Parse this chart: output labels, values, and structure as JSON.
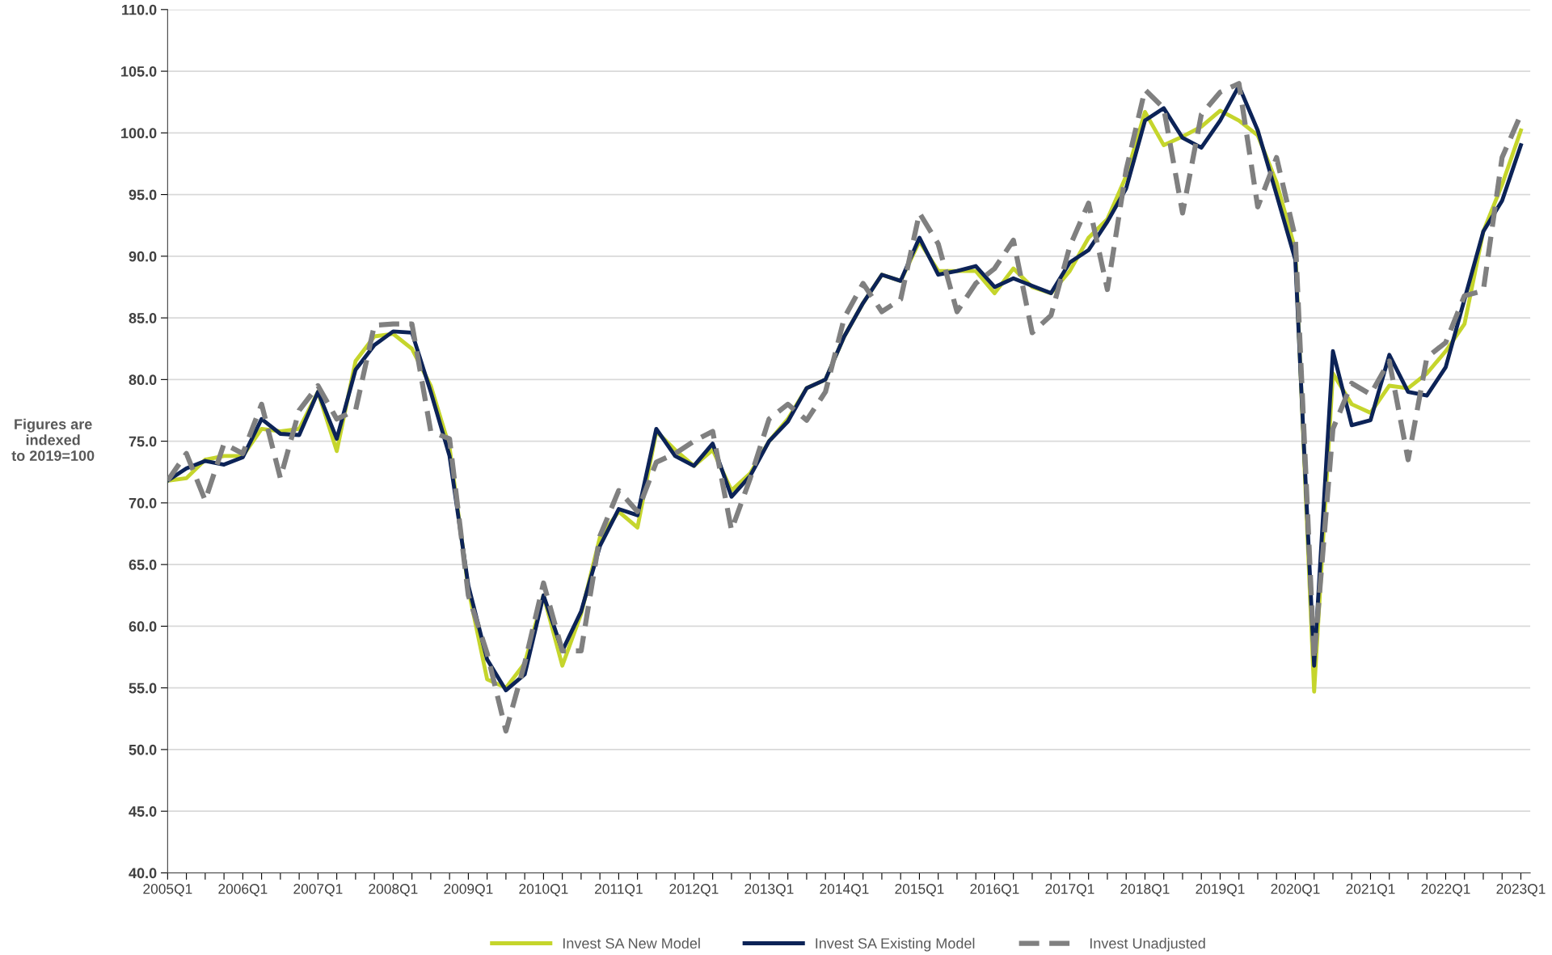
{
  "chart_data": {
    "type": "line",
    "ylabel": "Figures are\nindexed\nto 2019=100",
    "categories": [
      "2005Q1",
      null,
      null,
      null,
      "2006Q1",
      null,
      null,
      null,
      "2007Q1",
      null,
      null,
      null,
      "2008Q1",
      null,
      null,
      null,
      "2009Q1",
      null,
      null,
      null,
      "2010Q1",
      null,
      null,
      null,
      "2011Q1",
      null,
      null,
      null,
      "2012Q1",
      null,
      null,
      null,
      "2013Q1",
      null,
      null,
      null,
      "2014Q1",
      null,
      null,
      null,
      "2015Q1",
      null,
      null,
      null,
      "2016Q1",
      null,
      null,
      null,
      "2017Q1",
      null,
      null,
      null,
      "2018Q1",
      null,
      null,
      null,
      "2019Q1",
      null,
      null,
      null,
      "2020Q1",
      null,
      null,
      null,
      "2021Q1",
      null,
      null,
      null,
      "2022Q1",
      null,
      null,
      null,
      "2023Q1"
    ],
    "series": [
      {
        "name": "Invest SA New Model",
        "color": "#c5d52c",
        "line_style": "solid",
        "values": [
          71.8,
          72.0,
          73.5,
          73.8,
          73.8,
          76.0,
          75.8,
          76.0,
          79.0,
          74.2,
          81.5,
          83.5,
          83.7,
          82.5,
          79.5,
          74.5,
          63.0,
          55.7,
          55.0,
          57.0,
          62.5,
          56.8,
          61.0,
          67.2,
          69.3,
          68.0,
          75.8,
          74.3,
          73.0,
          74.3,
          71.0,
          72.4,
          75.0,
          76.8,
          79.3,
          80.0,
          83.5,
          86.2,
          88.5,
          88.0,
          91.2,
          88.8,
          88.8,
          88.8,
          87.0,
          89.0,
          87.5,
          87.0,
          88.8,
          91.5,
          93.0,
          96.5,
          101.7,
          99.0,
          99.7,
          100.5,
          101.8,
          101.0,
          99.8,
          96.0,
          90.5,
          54.7,
          80.5,
          78.0,
          77.3,
          79.5,
          79.3,
          80.5,
          82.3,
          84.5,
          92.0,
          95.8,
          100.2
        ]
      },
      {
        "name": "Invest SA Existing Model",
        "color": "#0c2357",
        "line_style": "solid",
        "values": [
          71.8,
          72.8,
          73.4,
          73.1,
          73.7,
          76.8,
          75.6,
          75.5,
          79.0,
          75.2,
          80.8,
          82.8,
          83.9,
          83.8,
          79.0,
          73.8,
          63.3,
          57.3,
          54.8,
          56.1,
          62.5,
          58.0,
          61.2,
          66.5,
          69.5,
          69.0,
          76.0,
          73.8,
          73.0,
          74.8,
          70.5,
          72.2,
          75.0,
          76.6,
          79.3,
          80.0,
          83.5,
          86.2,
          88.5,
          88.0,
          91.5,
          88.5,
          88.8,
          89.2,
          87.5,
          88.2,
          87.6,
          87.0,
          89.5,
          90.5,
          92.8,
          95.5,
          101.0,
          102.0,
          99.6,
          98.8,
          101.0,
          103.8,
          100.2,
          95.0,
          89.7,
          56.8,
          82.3,
          76.3,
          76.7,
          82.0,
          79.0,
          78.7,
          81.0,
          86.5,
          92.0,
          94.5,
          99.0
        ]
      },
      {
        "name": "Invest Unadjusted",
        "color": "#808080",
        "line_style": "dashed",
        "values": [
          71.8,
          74.0,
          70.2,
          74.8,
          74.0,
          78.0,
          72.0,
          77.5,
          79.5,
          76.8,
          77.5,
          84.4,
          84.5,
          84.5,
          75.8,
          75.2,
          62.5,
          57.8,
          51.5,
          57.0,
          63.5,
          58.0,
          58.0,
          67.3,
          71.0,
          69.3,
          73.3,
          74.0,
          75.0,
          75.8,
          67.8,
          72.0,
          76.8,
          78.0,
          76.7,
          79.0,
          85.0,
          87.8,
          85.5,
          86.5,
          93.5,
          91.0,
          85.5,
          87.8,
          89.0,
          91.3,
          83.8,
          85.2,
          90.8,
          94.3,
          87.3,
          97.0,
          103.5,
          102.0,
          93.5,
          101.5,
          103.3,
          104.0,
          94.0,
          98.0,
          91.5,
          57.3,
          76.0,
          79.7,
          78.8,
          81.5,
          73.5,
          81.8,
          83.0,
          86.8,
          87.2,
          98.0,
          101.5
        ]
      }
    ],
    "ylim": [
      40,
      110
    ],
    "yticks": [
      {
        "value": 40,
        "label": "40.0"
      },
      {
        "value": 45,
        "label": "45.0"
      },
      {
        "value": 50,
        "label": "50.0"
      },
      {
        "value": 55,
        "label": "55.0"
      },
      {
        "value": 60,
        "label": "60.0"
      },
      {
        "value": 65,
        "label": "65.0"
      },
      {
        "value": 70,
        "label": "70.0"
      },
      {
        "value": 75,
        "label": "75.0"
      },
      {
        "value": 80,
        "label": "80.0"
      },
      {
        "value": 85,
        "label": "85.0"
      },
      {
        "value": 90,
        "label": "90.0"
      },
      {
        "value": 95,
        "label": "95.0"
      },
      {
        "value": 100,
        "label": "100.0"
      },
      {
        "value": 105,
        "label": "105.0"
      },
      {
        "value": 110,
        "label": "110.0"
      }
    ],
    "grid": "y",
    "legend": "bottom",
    "marker": "none"
  }
}
